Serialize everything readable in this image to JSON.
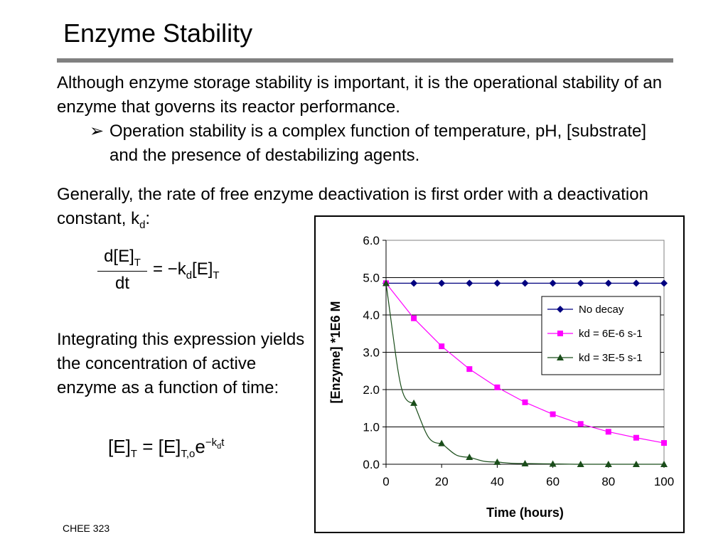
{
  "slide": {
    "title": "Enzyme Stability",
    "para1": "Although enzyme storage stability is important, it is the operational stability of an enzyme that governs its reactor performance.",
    "bullet_symbol": "➢",
    "bullet1": "Operation stability is a complex function of temperature, pH, [substrate] and the presence of destabilizing agents.",
    "para2_text": "Generally, the rate of free enzyme deactivation is first order with a deactivation constant, k",
    "para2_sub": "d",
    "para2_end": ":",
    "eq1": {
      "num": "d[E]",
      "num_sub": "T",
      "den": "dt",
      "rhs_a": "= −k",
      "rhs_sub1": "d",
      "rhs_b": "[E]",
      "rhs_sub2": "T"
    },
    "para3": "Integrating this expression yields the concentration of active enzyme as a function of time:",
    "eq2": {
      "lhs": "[E]",
      "lhs_sub": "T",
      "mid": " = [E]",
      "mid_sub": "T,o",
      "e": "e",
      "exp_a": "−k",
      "exp_sub": "d",
      "exp_b": "t"
    },
    "footer": "CHEE 323"
  },
  "chart_data": {
    "type": "line",
    "xlabel": "Time (hours)",
    "ylabel": "[Enzyme] *1E6 M",
    "xlim": [
      0,
      100
    ],
    "ylim": [
      0,
      6
    ],
    "xticks": [
      "0",
      "20",
      "40",
      "60",
      "80",
      "100"
    ],
    "yticks": [
      "0.0",
      "1.0",
      "2.0",
      "3.0",
      "4.0",
      "5.0",
      "6.0"
    ],
    "grid": true,
    "legend": "right",
    "x": [
      0,
      10,
      20,
      30,
      40,
      50,
      60,
      70,
      80,
      90,
      100
    ],
    "series": [
      {
        "name": "No decay",
        "color": "#000080",
        "marker": "diamond",
        "values": [
          4.85,
          4.85,
          4.85,
          4.85,
          4.85,
          4.85,
          4.85,
          4.85,
          4.85,
          4.85,
          4.85
        ]
      },
      {
        "name": "kd = 6E-6 s-1",
        "color": "#ff00ff",
        "marker": "square",
        "values": [
          4.85,
          3.91,
          3.16,
          2.55,
          2.06,
          1.66,
          1.34,
          1.08,
          0.87,
          0.71,
          0.57
        ]
      },
      {
        "name": "kd = 3E-5 s-1",
        "color": "#1a4d1a",
        "marker": "triangle",
        "values": [
          4.85,
          1.64,
          0.56,
          0.19,
          0.06,
          0.02,
          0.01,
          0.0,
          0.0,
          0.0,
          0.0
        ]
      }
    ]
  }
}
